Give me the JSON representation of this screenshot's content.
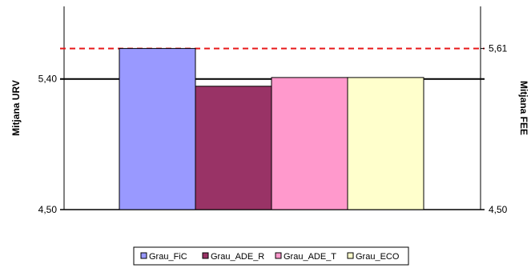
{
  "chart_data": {
    "type": "bar",
    "categories": [
      "Grau_FiC",
      "Grau_ADE_R",
      "Grau_ADE_T",
      "Grau_ECO"
    ],
    "values": [
      5.61,
      5.35,
      5.41,
      5.41
    ],
    "colors": [
      "#9999ff",
      "#993366",
      "#ff99cc",
      "#ffffcc"
    ],
    "ylim": [
      4.5,
      5.9
    ],
    "ylabel_left": "Mitjana URV",
    "ylabel_right": "Mitjana FEE",
    "left_ticks": [
      {
        "value": 4.5,
        "label": "4,50"
      },
      {
        "value": 5.4,
        "label": "5,40"
      }
    ],
    "right_ticks": [
      {
        "value": 4.5,
        "label": "4,50"
      },
      {
        "value": 5.61,
        "label": "5,61"
      }
    ],
    "reference_lines": [
      {
        "value": 5.4,
        "style": "solid",
        "color": "#000000"
      },
      {
        "value": 5.61,
        "style": "dashed",
        "color": "#e8191b"
      }
    ],
    "legend": {
      "placement": "bottom",
      "entries": [
        "Grau_FiC",
        "Grau_ADE_R",
        "Grau_ADE_T",
        "Grau_ECO"
      ]
    },
    "grid": false
  }
}
